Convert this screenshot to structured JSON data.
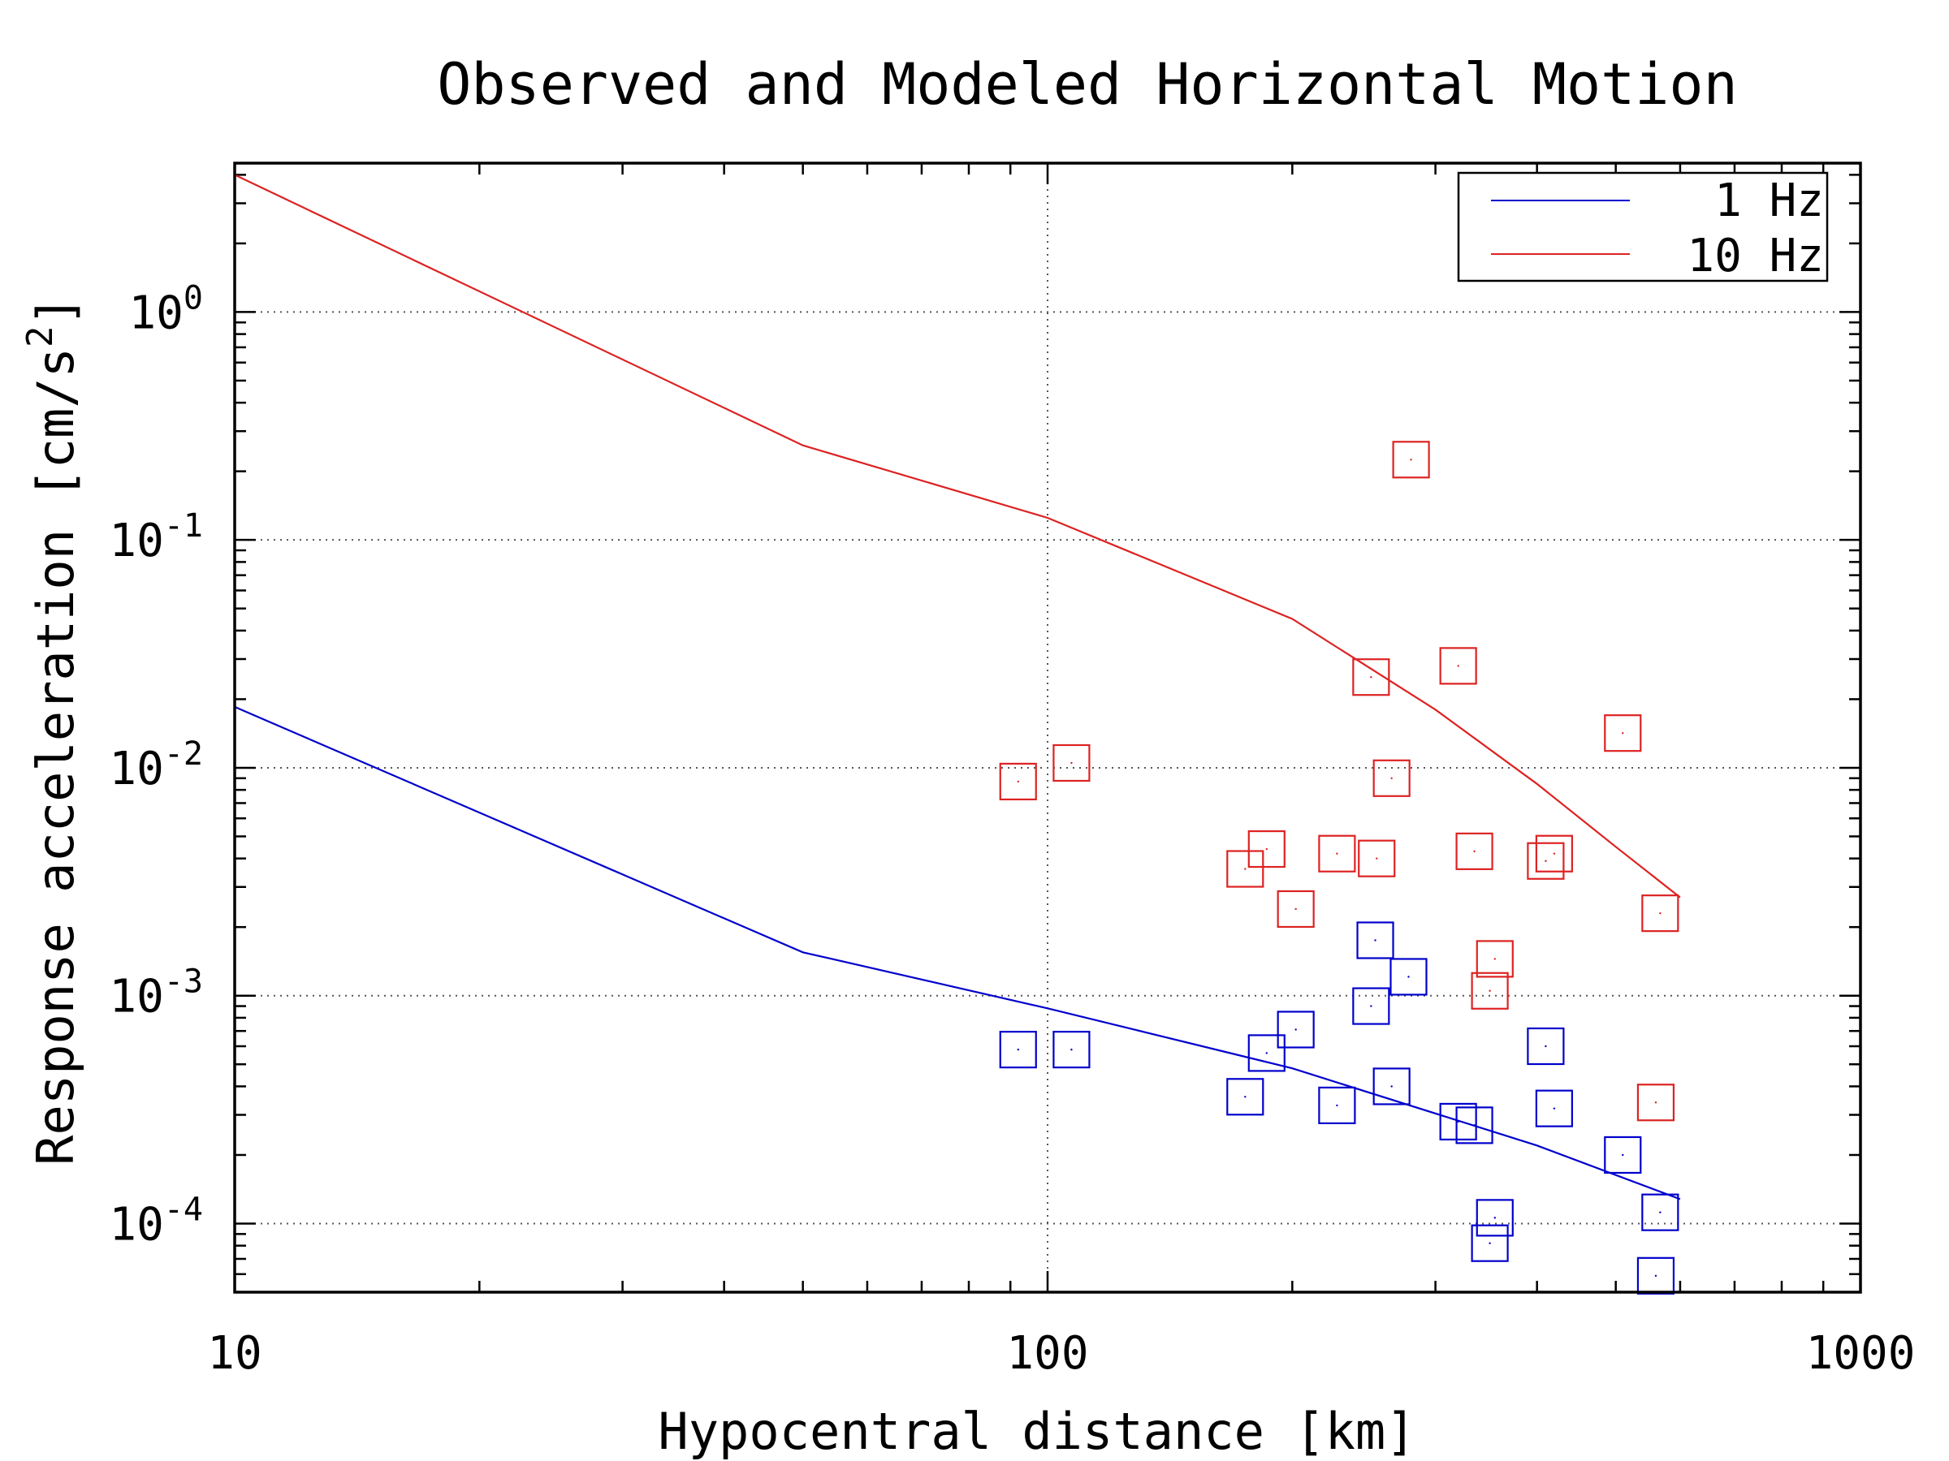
{
  "chart_data": {
    "type": "line",
    "title": "Observed and Modeled Horizontal Motion",
    "xlabel": "Hypocentral distance [km]",
    "ylabel_main": "Response acceleration [cm/s",
    "ylabel_sup": "2",
    "ylabel_close": "]",
    "xscale": "log",
    "yscale": "log",
    "xlim": [
      10,
      1000
    ],
    "ylim": [
      5e-05,
      4.5
    ],
    "grid": true,
    "legend_position": "top-right",
    "x_ticks": [
      {
        "value": 10,
        "label": "10"
      },
      {
        "value": 100,
        "label": "100"
      },
      {
        "value": 1000,
        "label": "1000"
      }
    ],
    "y_ticks": [
      {
        "value": 1,
        "base": "10",
        "exp": "0"
      },
      {
        "value": 0.1,
        "base": "10",
        "exp": "-1"
      },
      {
        "value": 0.01,
        "base": "10",
        "exp": "-2"
      },
      {
        "value": 0.001,
        "base": "10",
        "exp": "-3"
      },
      {
        "value": 0.0001,
        "base": "10",
        "exp": "-4"
      }
    ],
    "series": [
      {
        "name": "1 Hz",
        "color": "#0000cc",
        "line": {
          "x": [
            10,
            50,
            100,
            200,
            400,
            600
          ],
          "y": [
            0.0185,
            0.00155,
            0.00088,
            0.00048,
            0.00022,
            0.000128
          ]
        },
        "points": {
          "x": [
            92,
            107,
            175,
            186,
            202,
            227,
            250,
            253,
            265,
            278,
            320,
            335,
            350,
            355,
            410,
            420,
            510,
            560,
            567
          ],
          "y": [
            0.00058,
            0.00058,
            0.00036,
            0.00056,
            0.00071,
            0.00033,
            0.0009,
            0.00175,
            0.0004,
            0.00121,
            0.00028,
            0.00027,
            8.2e-05,
            0.000106,
            0.0006,
            0.00032,
            0.0002,
            5.9e-05,
            0.000112
          ]
        }
      },
      {
        "name": "10 Hz",
        "color": "#dd2222",
        "line": {
          "x": [
            10,
            50,
            100,
            200,
            300,
            400,
            500,
            600
          ],
          "y": [
            4.0,
            0.26,
            0.125,
            0.045,
            0.018,
            0.0085,
            0.0045,
            0.0027
          ]
        },
        "points": {
          "x": [
            92,
            107,
            175,
            186,
            202,
            227,
            250,
            254,
            265,
            280,
            320,
            335,
            350,
            355,
            410,
            420,
            510,
            560,
            567
          ],
          "y": [
            0.0087,
            0.0105,
            0.0036,
            0.0044,
            0.0024,
            0.0042,
            0.025,
            0.004,
            0.009,
            0.225,
            0.028,
            0.0043,
            0.00105,
            0.00145,
            0.0039,
            0.0042,
            0.0142,
            0.00034,
            0.0023
          ]
        }
      }
    ]
  }
}
